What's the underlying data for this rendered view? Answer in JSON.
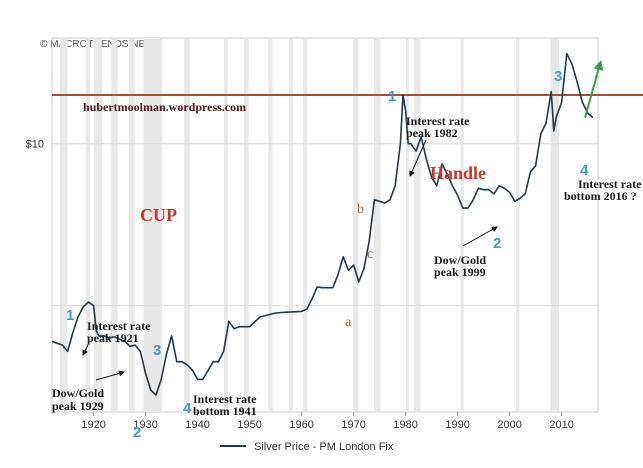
{
  "copyright": "© MACROTRENDS.NET",
  "chart_data": {
    "type": "line",
    "title": "",
    "xlabel": "",
    "ylabel": "",
    "y_scale": "log",
    "xlim": [
      1912,
      2017
    ],
    "ylim": [
      0.22,
      45
    ],
    "y_ticks": [
      {
        "value": 10,
        "label": "$10"
      }
    ],
    "x_ticks": [
      1920,
      1930,
      1940,
      1950,
      1960,
      1970,
      1980,
      1990,
      2000,
      2010
    ],
    "grid": true,
    "legend_position": "bottom-center",
    "series": [
      {
        "name": "Silver Price - PM London Fix",
        "color": "#1c3a4e",
        "x": [
          1912,
          1914,
          1915,
          1916,
          1917,
          1918,
          1919,
          1920,
          1920.5,
          1921,
          1922,
          1923,
          1924,
          1925,
          1926,
          1927,
          1928,
          1929,
          1930,
          1931,
          1932,
          1933,
          1934,
          1935,
          1936,
          1937,
          1938,
          1939,
          1940,
          1941,
          1943,
          1944,
          1945,
          1946,
          1947,
          1948,
          1950,
          1952,
          1955,
          1957,
          1960,
          1961,
          1962,
          1963,
          1964,
          1966,
          1967,
          1968,
          1969,
          1970,
          1971,
          1972,
          1973,
          1974,
          1975,
          1976,
          1977,
          1978,
          1979,
          1979.5,
          1980,
          1980.5,
          1981,
          1982,
          1983,
          1984,
          1985,
          1986,
          1987,
          1988,
          1989,
          1990,
          1991,
          1992,
          1993,
          1994,
          1995,
          1996,
          1997,
          1998,
          1999,
          2000,
          2001,
          2002,
          2003,
          2004,
          2005,
          2006,
          2007,
          2008,
          2008.5,
          2009,
          2010,
          2011,
          2012,
          2013,
          2014,
          2015,
          2016
        ],
        "y": [
          0.6,
          0.57,
          0.52,
          0.68,
          0.85,
          0.98,
          1.05,
          1.0,
          0.7,
          0.65,
          0.65,
          0.63,
          0.64,
          0.62,
          0.6,
          0.56,
          0.57,
          0.52,
          0.38,
          0.3,
          0.28,
          0.35,
          0.5,
          0.65,
          0.45,
          0.45,
          0.43,
          0.4,
          0.35,
          0.35,
          0.45,
          0.45,
          0.52,
          0.8,
          0.72,
          0.74,
          0.74,
          0.85,
          0.9,
          0.91,
          0.92,
          0.95,
          1.1,
          1.3,
          1.29,
          1.29,
          1.55,
          2.0,
          1.65,
          1.78,
          1.4,
          1.7,
          2.5,
          4.5,
          4.4,
          4.3,
          4.5,
          5.5,
          10,
          20,
          16,
          10,
          10,
          9,
          11,
          8,
          6.2,
          5.5,
          7.5,
          6.5,
          5.5,
          4.8,
          4.0,
          4.0,
          4.5,
          5.3,
          5.2,
          5.2,
          4.9,
          5.5,
          5.3,
          5.0,
          4.4,
          4.6,
          4.9,
          6.7,
          7.3,
          11.5,
          13.4,
          21.0,
          12.0,
          14.7,
          18,
          36,
          31,
          24,
          18,
          15.5,
          14.5
        ]
      }
    ],
    "projection": {
      "color": "#3a9a4a",
      "x": [
        2014.5,
        2017.5
      ],
      "y": [
        14.5,
        32
      ]
    },
    "resistance_line": {
      "color": "#a0522d",
      "y": 20
    },
    "shaded_periods": [
      [
        1913.5,
        1915
      ],
      [
        1918.5,
        1919.3
      ],
      [
        1920.1,
        1921.6
      ],
      [
        1923.4,
        1924.6
      ],
      [
        1926.8,
        1927.9
      ],
      [
        1929.6,
        1933.2
      ],
      [
        1937.4,
        1938.5
      ],
      [
        1945.1,
        1945.8
      ],
      [
        1948.9,
        1949.8
      ],
      [
        1953.6,
        1954.4
      ],
      [
        1957.6,
        1958.3
      ],
      [
        1960.3,
        1961.1
      ],
      [
        1969.9,
        1970.9
      ],
      [
        1973.9,
        1975.2
      ],
      [
        1980.1,
        1980.6
      ],
      [
        1981.6,
        1982.9
      ],
      [
        1990.6,
        1991.2
      ],
      [
        2001.2,
        2001.9
      ],
      [
        2007.9,
        2009.5
      ]
    ]
  },
  "annotations": {
    "site": "hubertmoolman.wordpress.com",
    "cup": "CUP",
    "handle": "Handle",
    "num1_left": "1",
    "num1_peak": "1",
    "num2_left": "2",
    "num2_right": "2",
    "num3_left": "3",
    "num3_right": "3",
    "num4_left": "4",
    "num4_right": "4",
    "letter_a": "a",
    "letter_b": "b",
    "letter_c": "c",
    "ir_1921_l1": "Interest rate",
    "ir_1921_l2": "peak 1921",
    "dowgold_1929_l1": "Dow/Gold",
    "dowgold_1929_l2": "peak 1929",
    "ir_1941_l1": "Interest rate",
    "ir_1941_l2": "bottom 1941",
    "ir_1982_l1": "Interest rate",
    "ir_1982_l2": "peak 1982",
    "dowgold_1999_l1": "Dow/Gold",
    "dowgold_1999_l2": "peak 1999",
    "ir_2016_l1": "Interest rate",
    "ir_2016_l2": "bottom 2016 ?"
  }
}
